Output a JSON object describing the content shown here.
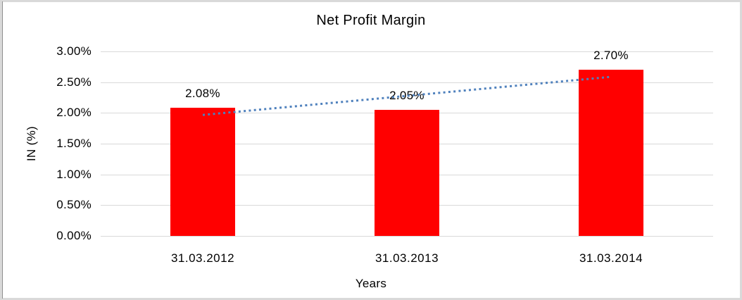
{
  "chart_data": {
    "type": "bar",
    "title": "Net Profit Margin",
    "xlabel": "Years",
    "ylabel": "IN (%)",
    "categories": [
      "31.03.2012",
      "31.03.2013",
      "31.03.2014"
    ],
    "series": [
      {
        "name": "Net Profit Margin",
        "values": [
          2.08,
          2.05,
          2.7
        ]
      }
    ],
    "data_labels": [
      "2.08%",
      "2.05%",
      "2.70%"
    ],
    "y_ticks": [
      "3.00%",
      "2.50%",
      "2.00%",
      "1.50%",
      "1.00%",
      "0.50%",
      "0.00%"
    ],
    "ylim": [
      0,
      3
    ],
    "y_step": 0.5,
    "grid": true,
    "legend_position": "none",
    "bar_color": "#ff0000",
    "gridline_color": "#d9d9d9",
    "frame_border_color": "#d9d9d9",
    "trendline": {
      "type": "linear",
      "style": "dotted",
      "color": "#4f81bd"
    }
  }
}
